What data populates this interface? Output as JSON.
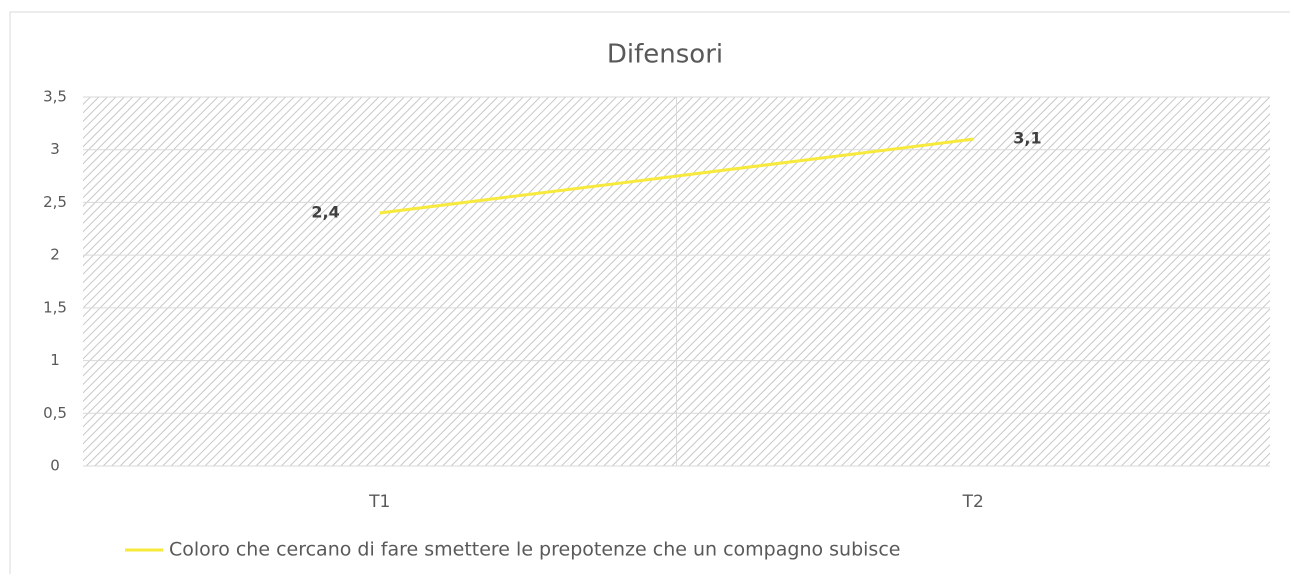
{
  "chart_data": {
    "type": "line",
    "title": "Difensori",
    "categories": [
      "T1",
      "T2"
    ],
    "series": [
      {
        "name": "Coloro che cercano di fare smettere le prepotenze che un compagno subisce",
        "color": "#f7ea3c",
        "values": [
          2.4,
          3.1
        ],
        "value_labels": [
          "2,4",
          "3,1"
        ]
      }
    ],
    "ylim": [
      0,
      3.5
    ],
    "yticks": [
      0,
      {
        "value": 0.5,
        "label": "0,5"
      },
      1,
      {
        "value": 1.5,
        "label": "1,5"
      },
      2,
      {
        "value": 2.5,
        "label": "2,5"
      },
      3,
      {
        "value": 3.5,
        "label": "3,5"
      }
    ],
    "grid": true,
    "legend": "bottom"
  }
}
